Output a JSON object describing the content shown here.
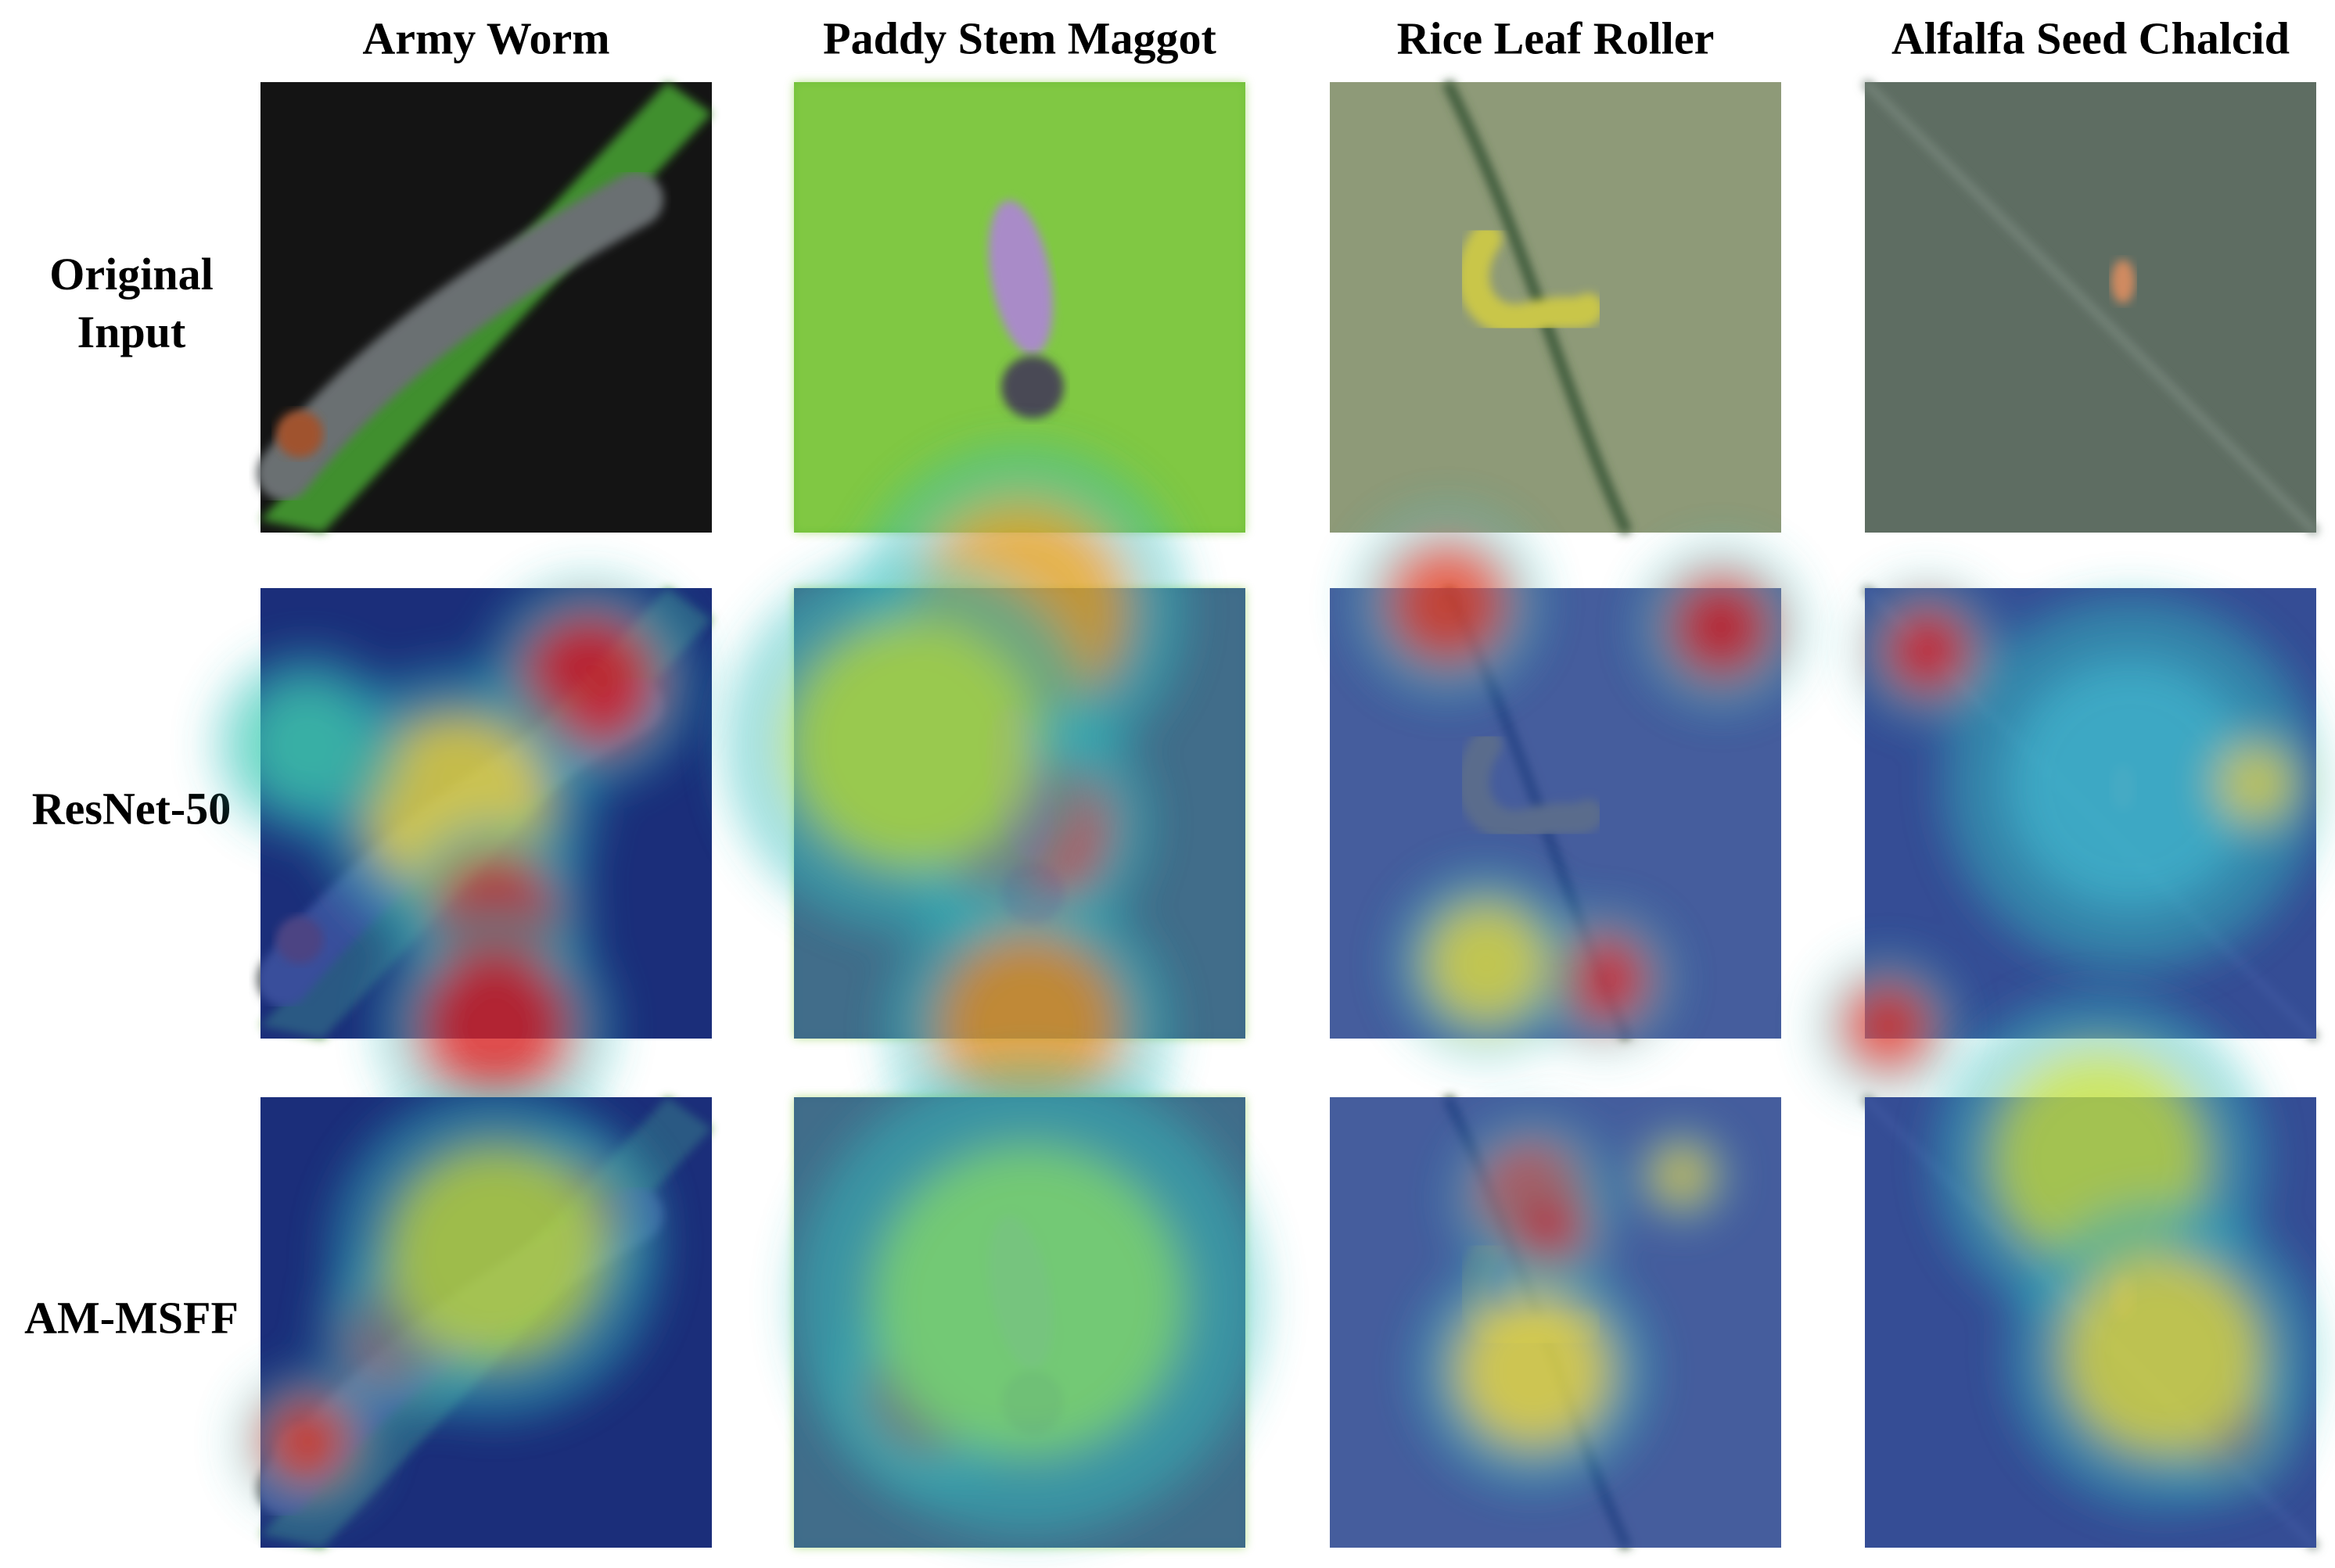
{
  "columns": [
    "Army Worm",
    "Paddy Stem Maggot",
    "Rice Leaf Roller",
    "Alfalfa Seed Chalcid"
  ],
  "rows": [
    "Original Input",
    "ResNet-50",
    "AM-MSFF"
  ]
}
